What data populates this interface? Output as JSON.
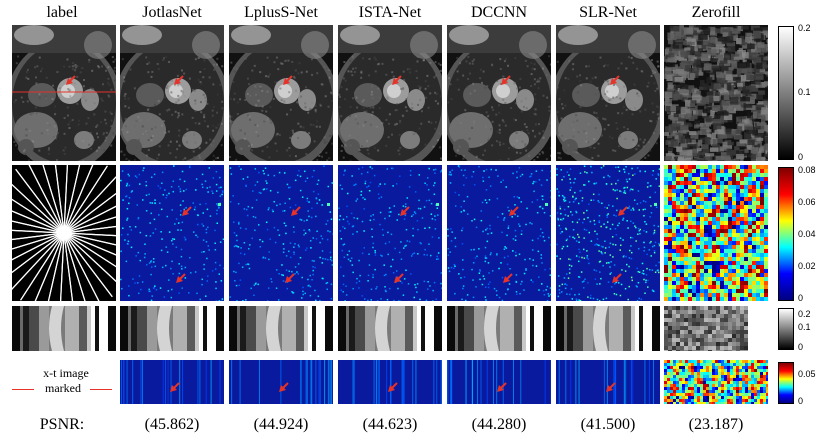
{
  "columns": [
    "label",
    "JotlasNet",
    "LplusS-Net",
    "ISTA-Net",
    "DCCNN",
    "SLR-Net",
    "Zerofill"
  ],
  "psnr": {
    "label": "PSNR:",
    "values": [
      "(45.862)",
      "(44.924)",
      "(44.623)",
      "(44.280)",
      "(41.500)",
      "(23.187)"
    ]
  },
  "legend_text": {
    "line1": "x-t image",
    "line2": "marked"
  },
  "colorbars": [
    {
      "ticks": [
        "0.2",
        "0.1",
        "0"
      ],
      "map": "gray"
    },
    {
      "ticks": [
        "0.08",
        "0.06",
        "0.04",
        "0.02",
        "0"
      ],
      "map": "jet"
    },
    {
      "ticks": [
        "0.2",
        "0.1",
        "0"
      ],
      "map": "gray"
    },
    {
      "ticks": [
        "0.05",
        "0"
      ],
      "map": "jet"
    }
  ],
  "colors": {
    "arrow": "#e6332a",
    "error_bg": "#0a1a9e",
    "marker_line": "#e6332a"
  }
}
